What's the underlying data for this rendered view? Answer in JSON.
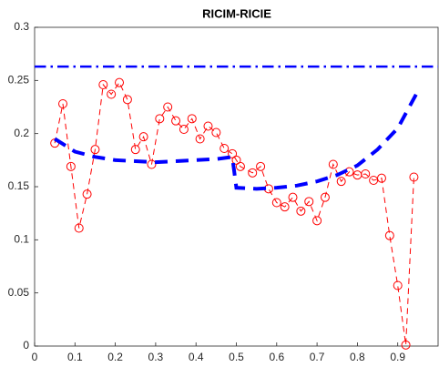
{
  "chart_data": {
    "type": "line",
    "title": "RICIM-RICIE",
    "xlim": [
      0,
      1
    ],
    "xticks": [
      0,
      0.1,
      0.2,
      0.3,
      0.4,
      0.5,
      0.6,
      0.7,
      0.8,
      0.9
    ],
    "ylim": [
      0,
      0.3
    ],
    "yticks": [
      0,
      0.05,
      0.1,
      0.15,
      0.2,
      0.25,
      0.3
    ],
    "grid": false,
    "series": [
      {
        "color": "#ff0000",
        "dash": "dashed",
        "marker": "circle",
        "line_width": 1,
        "x": [
          0.05,
          0.07,
          0.09,
          0.11,
          0.13,
          0.15,
          0.17,
          0.19,
          0.21,
          0.23,
          0.25,
          0.27,
          0.29,
          0.31,
          0.33,
          0.35,
          0.37,
          0.39,
          0.41,
          0.43,
          0.45,
          0.47,
          0.49,
          0.5,
          0.51,
          0.54,
          0.56,
          0.58,
          0.6,
          0.62,
          0.64,
          0.66,
          0.68,
          0.7,
          0.72,
          0.74,
          0.76,
          0.78,
          0.8,
          0.82,
          0.84,
          0.86,
          0.88,
          0.9,
          0.92,
          0.94
        ],
        "values": [
          0.191,
          0.228,
          0.169,
          0.111,
          0.143,
          0.185,
          0.246,
          0.237,
          0.248,
          0.232,
          0.185,
          0.197,
          0.171,
          0.214,
          0.225,
          0.212,
          0.204,
          0.214,
          0.195,
          0.207,
          0.201,
          0.186,
          0.181,
          0.175,
          0.169,
          0.163,
          0.169,
          0.148,
          0.135,
          0.131,
          0.14,
          0.127,
          0.136,
          0.118,
          0.14,
          0.171,
          0.155,
          0.164,
          0.161,
          0.162,
          0.156,
          0.158,
          0.104,
          0.057,
          0.001,
          0.159
        ]
      },
      {
        "color": "#0000ff",
        "dash": "dashed",
        "marker": "none",
        "line_width": 4,
        "x": [
          0.05,
          0.1,
          0.15,
          0.2,
          0.25,
          0.3,
          0.35,
          0.4,
          0.45,
          0.49,
          0.5,
          0.55,
          0.6,
          0.65,
          0.7,
          0.75,
          0.8,
          0.85,
          0.9,
          0.95
        ],
        "values": [
          0.195,
          0.183,
          0.178,
          0.175,
          0.174,
          0.173,
          0.174,
          0.175,
          0.176,
          0.178,
          0.149,
          0.148,
          0.149,
          0.151,
          0.155,
          0.161,
          0.17,
          0.185,
          0.205,
          0.24
        ]
      },
      {
        "color": "#0000ff",
        "dash": "dashdot",
        "marker": "none",
        "line_width": 2.5,
        "x": [
          0,
          1
        ],
        "values": [
          0.263,
          0.263
        ]
      }
    ]
  }
}
